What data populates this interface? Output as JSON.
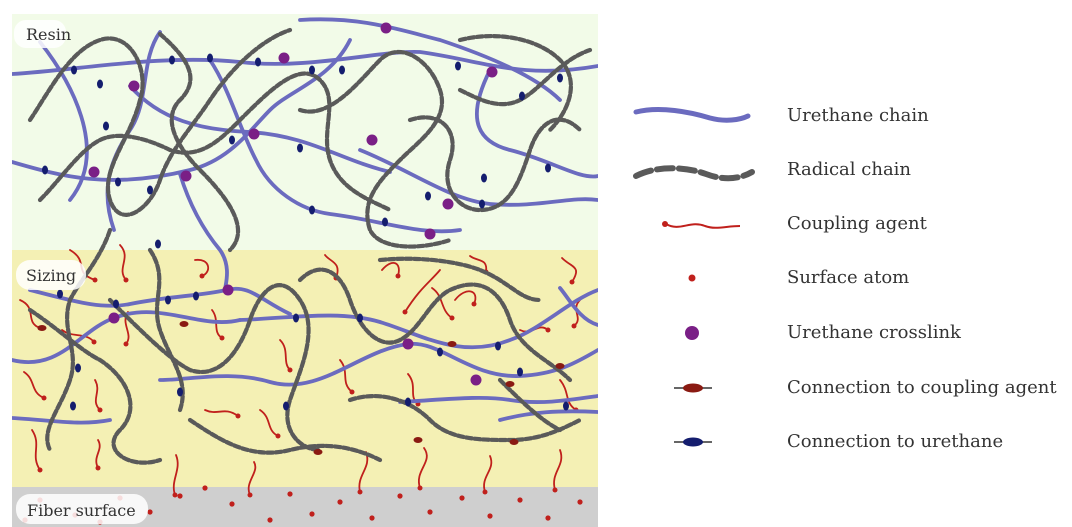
{
  "regions": {
    "resin": "Resin",
    "sizing": "Sizing",
    "fiber_surface": "Fiber surface"
  },
  "legend": [
    {
      "icon": "urethane-chain-icon",
      "label": "Urethane chain"
    },
    {
      "icon": "radical-chain-icon",
      "label": "Radical chain"
    },
    {
      "icon": "coupling-agent-icon",
      "label": "Coupling agent"
    },
    {
      "icon": "surface-atom-icon",
      "label": "Surface atom"
    },
    {
      "icon": "urethane-crosslink-icon",
      "label": "Urethane crosslink"
    },
    {
      "icon": "connection-coupling-icon",
      "label": "Connection to coupling agent"
    },
    {
      "icon": "connection-urethane-icon",
      "label": "Connection to urethane"
    }
  ],
  "colors": {
    "resin_bg": "#f2fbe8",
    "sizing_bg": "#f4f0b4",
    "fiber_bg": "#cfcfcf",
    "urethane": "#6b6bbf",
    "radical": "#555555",
    "coupling": "#c0201c",
    "crosslink": "#7a1f86",
    "connection_coupling": "#8a1a12",
    "connection_urethane": "#141d6e"
  }
}
